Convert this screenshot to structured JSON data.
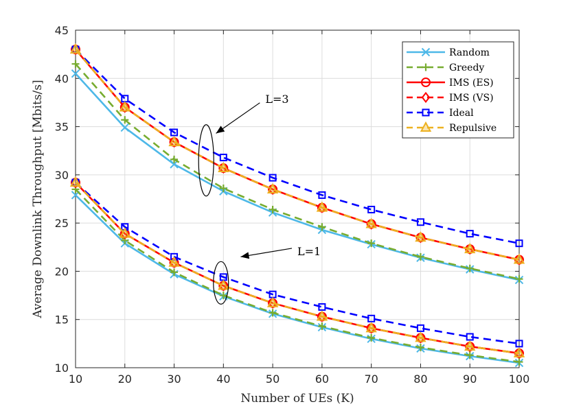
{
  "chart_data": {
    "type": "line",
    "title": "",
    "xlabel": "Number of UEs (K)",
    "ylabel": "Average Downlink Throughput [Mbits/s]",
    "xlim": [
      10,
      100
    ],
    "ylim": [
      10,
      45
    ],
    "xticks": [
      10,
      20,
      30,
      40,
      50,
      60,
      70,
      80,
      90,
      100
    ],
    "yticks": [
      10,
      15,
      20,
      25,
      30,
      35,
      40,
      45
    ],
    "grid": true,
    "legend_position": "top-right",
    "x": [
      10,
      20,
      30,
      40,
      50,
      60,
      70,
      80,
      90,
      100
    ],
    "series": [
      {
        "name": "Random",
        "group": "L=3",
        "color": "#4db8e8",
        "dash": "solid",
        "marker": "x",
        "values": [
          40.5,
          34.9,
          31.1,
          28.3,
          26.1,
          24.3,
          22.8,
          21.4,
          20.2,
          19.1
        ]
      },
      {
        "name": "Greedy",
        "group": "L=3",
        "color": "#77ac30",
        "dash": "dashed",
        "marker": "plus",
        "values": [
          41.5,
          35.7,
          31.6,
          28.6,
          26.4,
          24.6,
          22.9,
          21.5,
          20.3,
          19.2
        ]
      },
      {
        "name": "IMS (ES)",
        "group": "L=3",
        "color": "#ff0000",
        "dash": "solid",
        "marker": "circle",
        "values": [
          43.0,
          37.0,
          33.4,
          30.7,
          28.5,
          26.6,
          24.9,
          23.5,
          22.3,
          21.2
        ]
      },
      {
        "name": "IMS (VS)",
        "group": "L=3",
        "color": "#ff0000",
        "dash": "dashed",
        "marker": "diamond",
        "values": [
          43.0,
          37.0,
          33.4,
          30.7,
          28.5,
          26.6,
          24.9,
          23.5,
          22.3,
          21.2
        ]
      },
      {
        "name": "Ideal",
        "group": "L=3",
        "color": "#0000ff",
        "dash": "dashed",
        "marker": "square",
        "values": [
          43.0,
          37.9,
          34.4,
          31.8,
          29.7,
          27.9,
          26.4,
          25.1,
          23.9,
          22.9
        ]
      },
      {
        "name": "Repulsive",
        "group": "L=3",
        "color": "#edb120",
        "dash": "dashed",
        "marker": "triangle",
        "values": [
          43.0,
          37.0,
          33.4,
          30.7,
          28.5,
          26.6,
          24.9,
          23.5,
          22.3,
          21.2
        ]
      },
      {
        "name": "Random",
        "group": "L=1",
        "color": "#4db8e8",
        "dash": "solid",
        "marker": "x",
        "values": [
          27.9,
          22.9,
          19.7,
          17.4,
          15.6,
          14.2,
          13.0,
          12.0,
          11.2,
          10.5
        ]
      },
      {
        "name": "Greedy",
        "group": "L=1",
        "color": "#77ac30",
        "dash": "dashed",
        "marker": "plus",
        "values": [
          28.5,
          23.2,
          19.9,
          17.5,
          15.7,
          14.3,
          13.1,
          12.1,
          11.3,
          10.6
        ]
      },
      {
        "name": "IMS (ES)",
        "group": "L=1",
        "color": "#ff0000",
        "dash": "solid",
        "marker": "circle",
        "values": [
          29.2,
          23.9,
          20.9,
          18.5,
          16.7,
          15.3,
          14.1,
          13.1,
          12.2,
          11.5
        ]
      },
      {
        "name": "IMS (VS)",
        "group": "L=1",
        "color": "#ff0000",
        "dash": "dashed",
        "marker": "diamond",
        "values": [
          29.2,
          23.9,
          20.9,
          18.5,
          16.7,
          15.3,
          14.1,
          13.1,
          12.2,
          11.5
        ]
      },
      {
        "name": "Ideal",
        "group": "L=1",
        "color": "#0000ff",
        "dash": "dashed",
        "marker": "square",
        "values": [
          29.2,
          24.6,
          21.5,
          19.4,
          17.6,
          16.3,
          15.1,
          14.1,
          13.2,
          12.5
        ]
      },
      {
        "name": "Repulsive",
        "group": "L=1",
        "color": "#edb120",
        "dash": "dashed",
        "marker": "triangle",
        "values": [
          29.2,
          23.9,
          20.9,
          18.5,
          16.7,
          15.3,
          14.1,
          13.1,
          12.2,
          11.5
        ]
      }
    ],
    "legend": [
      "Random",
      "Greedy",
      "IMS (ES)",
      "IMS (VS)",
      "Ideal",
      "Repulsive"
    ],
    "annotations": [
      {
        "text": "L=3",
        "ellipse_center": [
          36.5,
          31.5
        ],
        "arrow_to": [
          38.5,
          34.3
        ],
        "text_at": [
          48.5,
          37.9
        ]
      },
      {
        "text": "L=1",
        "ellipse_center": [
          39.5,
          18.8
        ],
        "arrow_to": [
          43.5,
          21.5
        ],
        "text_at": [
          55,
          22.1
        ]
      }
    ]
  }
}
